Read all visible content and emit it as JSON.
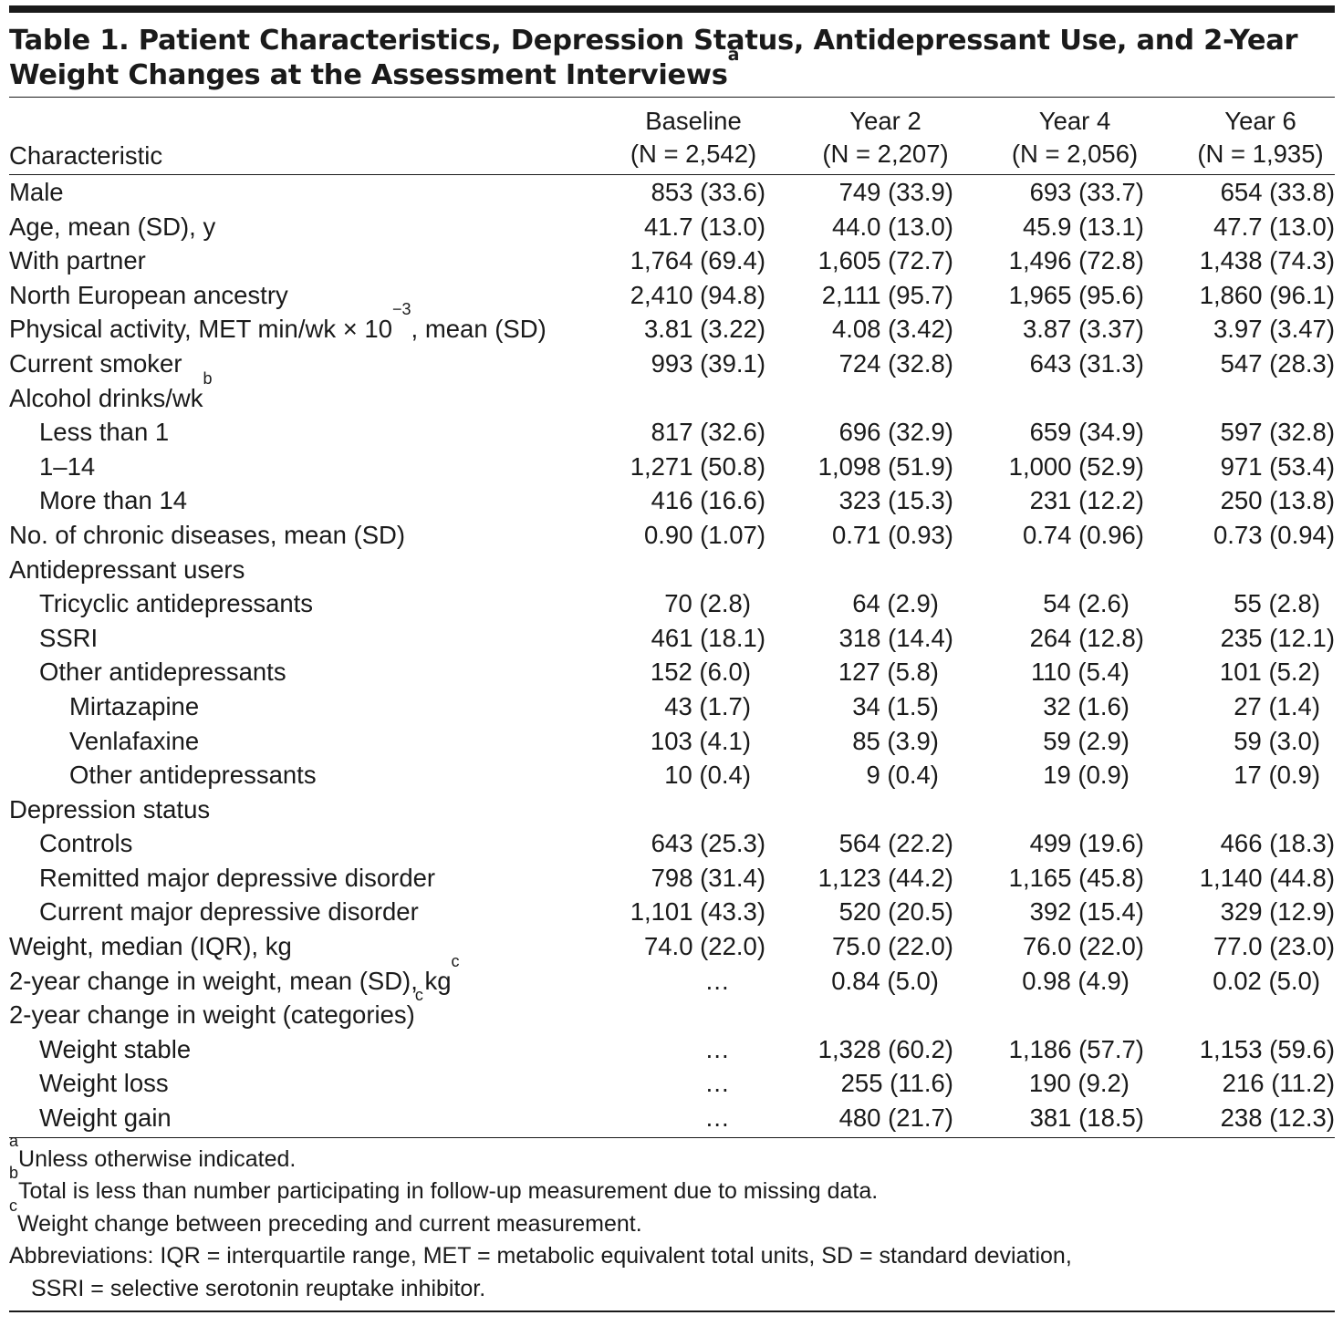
{
  "title": {
    "text": "Table 1. Patient Characteristics, Depression Status, Antidepressant Use, and 2-Year Weight Changes at the Assessment Interviews",
    "sup": "a"
  },
  "columns": {
    "characteristic": "Characteristic",
    "headers": [
      {
        "name": "Baseline",
        "n": "(N = 2,542)"
      },
      {
        "name": "Year 2",
        "n": "(N = 2,207)"
      },
      {
        "name": "Year 4",
        "n": "(N = 2,056)"
      },
      {
        "name": "Year 6",
        "n": "(N = 1,935)"
      }
    ]
  },
  "rows": [
    {
      "label": "Male",
      "indent": 0,
      "values": [
        "853 (33.6)",
        "749 (33.9)",
        "693 (33.7)",
        "654 (33.8)"
      ]
    },
    {
      "label": "Age, mean (SD), y",
      "indent": 0,
      "values": [
        "41.7 (13.0)",
        "44.0 (13.0)",
        "45.9 (13.1)",
        "47.7 (13.0)"
      ]
    },
    {
      "label": "With partner",
      "indent": 0,
      "values": [
        "1,764 (69.4)",
        "1,605 (72.7)",
        "1,496 (72.8)",
        "1,438 (74.3)"
      ]
    },
    {
      "label": "North European ancestry",
      "indent": 0,
      "values": [
        "2,410 (94.8)",
        "2,111 (95.7)",
        "1,965 (95.6)",
        "1,860 (96.1)"
      ]
    },
    {
      "label": "Physical activity, MET min/wk × 10",
      "sup": "−3",
      "label_after": ", mean (SD)",
      "indent": 0,
      "values": [
        "3.81 (3.22)",
        "4.08 (3.42)",
        "3.87 (3.37)",
        "3.97 (3.47)"
      ]
    },
    {
      "label": "Current smoker",
      "indent": 0,
      "values": [
        "993 (39.1)",
        "724 (32.8)",
        "643 (31.3)",
        "547 (28.3)"
      ]
    },
    {
      "label": "Alcohol drinks/wk",
      "sup": "b",
      "indent": 0,
      "values": [
        "",
        "",
        "",
        ""
      ]
    },
    {
      "label": "Less than 1",
      "indent": 1,
      "values": [
        "817 (32.6)",
        "696 (32.9)",
        "659 (34.9)",
        "597 (32.8)"
      ]
    },
    {
      "label": "1–14",
      "indent": 1,
      "values": [
        "1,271 (50.8)",
        "1,098 (51.9)",
        "1,000 (52.9)",
        "971 (53.4)"
      ]
    },
    {
      "label": "More than 14",
      "indent": 1,
      "values": [
        "416 (16.6)",
        "323 (15.3)",
        "231 (12.2)",
        "250 (13.8)"
      ]
    },
    {
      "label": "No. of chronic diseases, mean (SD)",
      "indent": 0,
      "values": [
        "0.90 (1.07)",
        "0.71 (0.93)",
        "0.74 (0.96)",
        "0.73 (0.94)"
      ]
    },
    {
      "label": "Antidepressant users",
      "indent": 0,
      "values": [
        "",
        "",
        "",
        ""
      ]
    },
    {
      "label": "Tricyclic antidepressants",
      "indent": 1,
      "values": [
        "70 (2.8)",
        "64 (2.9)",
        "54 (2.6)",
        "55 (2.8)"
      ]
    },
    {
      "label": "SSRI",
      "indent": 1,
      "values": [
        "461 (18.1)",
        "318 (14.4)",
        "264 (12.8)",
        "235 (12.1)"
      ]
    },
    {
      "label": "Other antidepressants",
      "indent": 1,
      "values": [
        "152 (6.0)",
        "127 (5.8)",
        "110 (5.4)",
        "101 (5.2)"
      ]
    },
    {
      "label": "Mirtazapine",
      "indent": 2,
      "values": [
        "43 (1.7)",
        "34 (1.5)",
        "32 (1.6)",
        "27 (1.4)"
      ]
    },
    {
      "label": "Venlafaxine",
      "indent": 2,
      "values": [
        "103 (4.1)",
        "85 (3.9)",
        "59 (2.9)",
        "59 (3.0)"
      ]
    },
    {
      "label": "Other antidepressants",
      "indent": 2,
      "values": [
        "10 (0.4)",
        "9 (0.4)",
        "19 (0.9)",
        "17 (0.9)"
      ]
    },
    {
      "label": "Depression status",
      "indent": 0,
      "values": [
        "",
        "",
        "",
        ""
      ]
    },
    {
      "label": "Controls",
      "indent": 1,
      "values": [
        "643 (25.3)",
        "564 (22.2)",
        "499 (19.6)",
        "466 (18.3)"
      ]
    },
    {
      "label": "Remitted major depressive disorder",
      "indent": 1,
      "values": [
        "798 (31.4)",
        "1,123 (44.2)",
        "1,165 (45.8)",
        "1,140 (44.8)"
      ]
    },
    {
      "label": "Current major depressive disorder",
      "indent": 1,
      "values": [
        "1,101 (43.3)",
        "520 (20.5)",
        "392 (15.4)",
        "329 (12.9)"
      ]
    },
    {
      "label": "Weight, median (IQR), kg",
      "indent": 0,
      "values": [
        "74.0 (22.0)",
        "75.0 (22.0)",
        "76.0 (22.0)",
        "77.0 (23.0)"
      ]
    },
    {
      "label": "2-year change in weight, mean (SD), kg",
      "sup": "c",
      "indent": 0,
      "values": [
        "…",
        "0.84 (5.0)",
        "0.98 (4.9)",
        "0.02 (5.0)"
      ]
    },
    {
      "label": "2-year change in weight (categories)",
      "sup": "c",
      "indent": 0,
      "values": [
        "",
        "",
        "",
        ""
      ]
    },
    {
      "label": "Weight stable",
      "indent": 1,
      "values": [
        "…",
        "1,328 (60.2)",
        "1,186 (57.7)",
        "1,153 (59.6)"
      ]
    },
    {
      "label": "Weight loss",
      "indent": 1,
      "values": [
        "…",
        "255 (11.6)",
        "190 (9.2)",
        "216 (11.2)"
      ]
    },
    {
      "label": "Weight gain",
      "indent": 1,
      "values": [
        "…",
        "480 (21.7)",
        "381 (18.5)",
        "238 (12.3)"
      ]
    }
  ],
  "footnotes": [
    {
      "sup": "a",
      "text": "Unless otherwise indicated."
    },
    {
      "sup": "b",
      "text": "Total is less than number participating in follow-up measurement due to missing data."
    },
    {
      "sup": "c",
      "text": "Weight change between preceding and current measurement."
    }
  ],
  "abbreviations": {
    "line1": "Abbreviations: IQR = interquartile range, MET = metabolic equivalent total units, SD = standard deviation,",
    "line2": "SSRI = selective serotonin reuptake inhibitor."
  }
}
